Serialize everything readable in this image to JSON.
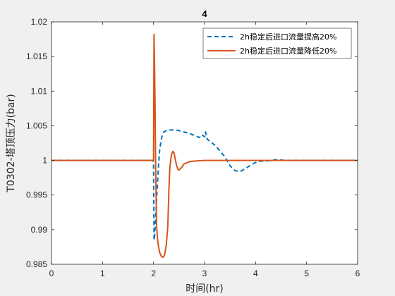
{
  "chart_data": {
    "type": "line",
    "title": "4",
    "xlabel": "时间(hr)",
    "ylabel": "T0302-塔顶压力(bar)",
    "xlim": [
      0,
      6
    ],
    "ylim": [
      0.985,
      1.02
    ],
    "xticks": [
      0,
      1,
      2,
      3,
      4,
      5,
      6
    ],
    "yticks": [
      0.985,
      0.99,
      0.995,
      1,
      1.005,
      1.01,
      1.015,
      1.02
    ],
    "ytick_labels": [
      "0.985",
      "0.99",
      "0.995",
      "1",
      "1.005",
      "1.01",
      "1.015",
      "1.02"
    ],
    "grid": false,
    "legend_position": "top-right",
    "series": [
      {
        "name": "2h稳定后进口流量提高20%",
        "color": "#0072BD",
        "style": "dashed",
        "x": [
          0,
          1.99,
          2.0,
          2.01,
          2.02,
          2.04,
          2.06,
          2.08,
          2.1,
          2.12,
          2.15,
          2.18,
          2.2,
          2.25,
          2.3,
          2.35,
          2.4,
          2.5,
          2.6,
          2.7,
          2.8,
          2.9,
          2.95,
          3.0,
          3.02,
          3.04,
          3.06,
          3.08,
          3.1,
          3.2,
          3.3,
          3.4,
          3.5,
          3.6,
          3.7,
          3.8,
          3.9,
          4.0,
          4.1,
          4.2,
          4.4,
          4.6,
          4.8,
          5.0,
          5.5,
          6.0
        ],
        "y": [
          1.0,
          1.0,
          0.9992,
          0.9885,
          0.989,
          0.9915,
          0.9945,
          0.997,
          0.9995,
          1.0015,
          1.003,
          1.0038,
          1.0041,
          1.0043,
          1.0044,
          1.0044,
          1.0044,
          1.0043,
          1.0041,
          1.0039,
          1.0036,
          1.0033,
          1.0037,
          1.0034,
          1.0041,
          1.0033,
          1.003,
          1.0029,
          1.0028,
          1.0022,
          1.0014,
          1.0005,
          0.9992,
          0.9985,
          0.9984,
          0.9988,
          0.9993,
          0.9997,
          0.9999,
          0.9999,
          1.0001,
          1.0,
          1.0,
          1.0,
          1.0,
          1.0
        ]
      },
      {
        "name": "2h稳定后进口流量降低20%",
        "color": "#D95319",
        "style": "solid",
        "x": [
          0,
          1.99,
          2.0,
          2.01,
          2.02,
          2.03,
          2.04,
          2.06,
          2.08,
          2.1,
          2.12,
          2.15,
          2.18,
          2.2,
          2.22,
          2.25,
          2.28,
          2.3,
          2.32,
          2.35,
          2.38,
          2.4,
          2.42,
          2.45,
          2.48,
          2.5,
          2.55,
          2.6,
          2.7,
          2.8,
          3.0,
          3.2,
          3.5,
          4.0,
          5.0,
          6.0
        ],
        "y": [
          1.0,
          1.0,
          1.0,
          1.0182,
          1.014,
          1.008,
          1.0,
          0.9905,
          0.9885,
          0.9875,
          0.9867,
          0.9862,
          0.986,
          0.9861,
          0.9865,
          0.9878,
          0.9905,
          0.9955,
          0.999,
          1.0008,
          1.0013,
          1.0011,
          1.0004,
          0.9993,
          0.9987,
          0.9986,
          0.999,
          0.9995,
          0.9998,
          0.9999,
          1.0,
          1.0,
          1.0,
          1.0,
          1.0,
          1.0
        ]
      }
    ]
  }
}
